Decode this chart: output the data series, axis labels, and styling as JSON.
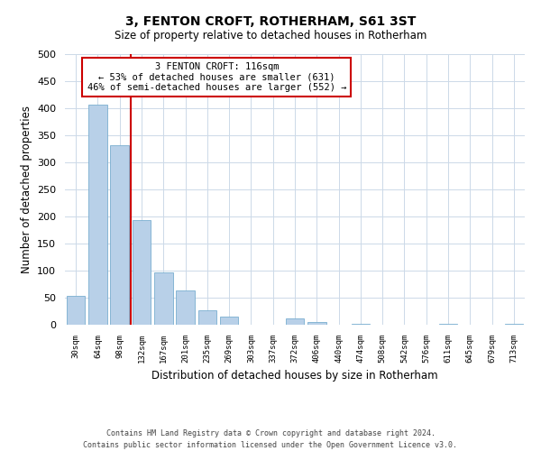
{
  "title": "3, FENTON CROFT, ROTHERHAM, S61 3ST",
  "subtitle": "Size of property relative to detached houses in Rotherham",
  "xlabel": "Distribution of detached houses by size in Rotherham",
  "ylabel": "Number of detached properties",
  "footer_line1": "Contains HM Land Registry data © Crown copyright and database right 2024.",
  "footer_line2": "Contains public sector information licensed under the Open Government Licence v3.0.",
  "bar_labels": [
    "30sqm",
    "64sqm",
    "98sqm",
    "132sqm",
    "167sqm",
    "201sqm",
    "235sqm",
    "269sqm",
    "303sqm",
    "337sqm",
    "372sqm",
    "406sqm",
    "440sqm",
    "474sqm",
    "508sqm",
    "542sqm",
    "576sqm",
    "611sqm",
    "645sqm",
    "679sqm",
    "713sqm"
  ],
  "bar_values": [
    53,
    407,
    331,
    193,
    97,
    63,
    26,
    15,
    0,
    0,
    11,
    5,
    0,
    2,
    0,
    0,
    0,
    2,
    0,
    0,
    2
  ],
  "bar_color": "#b8d0e8",
  "bar_edge_color": "#7aaed0",
  "ylim": [
    0,
    500
  ],
  "yticks": [
    0,
    50,
    100,
    150,
    200,
    250,
    300,
    350,
    400,
    450,
    500
  ],
  "property_line_color": "#cc0000",
  "annotation_title": "3 FENTON CROFT: 116sqm",
  "annotation_line1": "← 53% of detached houses are smaller (631)",
  "annotation_line2": "46% of semi-detached houses are larger (552) →",
  "annotation_box_color": "#cc0000",
  "background_color": "#ffffff",
  "grid_color": "#ccd9e8"
}
